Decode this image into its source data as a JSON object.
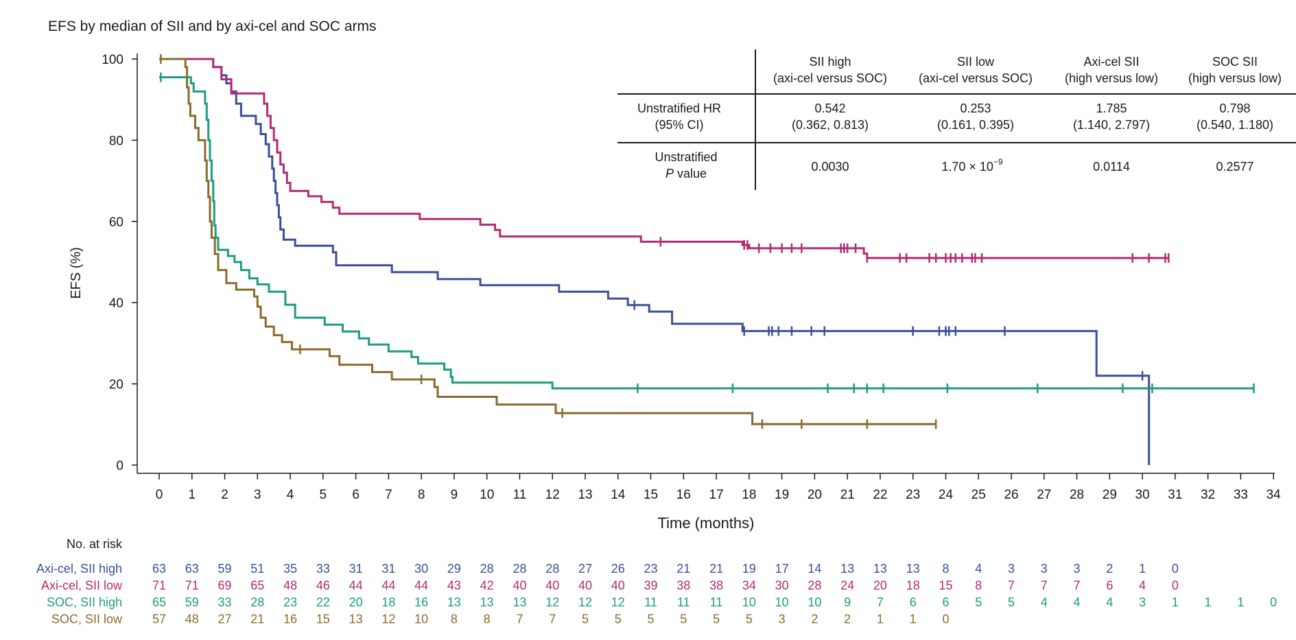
{
  "chart_data": {
    "type": "line",
    "subtype": "kaplan-meier step curves",
    "title": "EFS by median of SII and by axi-cel and SOC arms",
    "xlabel": "Time (months)",
    "ylabel": "EFS (%)",
    "xlim": [
      0,
      34
    ],
    "ylim": [
      0,
      100
    ],
    "xticks": [
      0,
      1,
      2,
      3,
      4,
      5,
      6,
      7,
      8,
      9,
      10,
      11,
      12,
      13,
      14,
      15,
      16,
      17,
      18,
      19,
      20,
      21,
      22,
      23,
      24,
      25,
      26,
      27,
      28,
      29,
      30,
      31,
      32,
      33,
      34
    ],
    "yticks": [
      0,
      20,
      40,
      60,
      80,
      100
    ],
    "series": [
      {
        "name": "Axi-cel, SII high",
        "color": "#3a4f96",
        "steps": [
          [
            0,
            100
          ],
          [
            1.65,
            98
          ],
          [
            1.9,
            96
          ],
          [
            2.05,
            94
          ],
          [
            2.2,
            92
          ],
          [
            2.35,
            89
          ],
          [
            2.5,
            86
          ],
          [
            2.95,
            84
          ],
          [
            3.1,
            81.5
          ],
          [
            3.25,
            79
          ],
          [
            3.35,
            76
          ],
          [
            3.45,
            73
          ],
          [
            3.5,
            70
          ],
          [
            3.55,
            67
          ],
          [
            3.6,
            64
          ],
          [
            3.65,
            61
          ],
          [
            3.7,
            58
          ],
          [
            3.8,
            55.5
          ],
          [
            4.15,
            54
          ],
          [
            5.3,
            52.4
          ],
          [
            5.4,
            49.2
          ],
          [
            7.1,
            47.5
          ],
          [
            8.5,
            45.8
          ],
          [
            9.8,
            44.3
          ],
          [
            12.2,
            42.7
          ],
          [
            13.7,
            41
          ],
          [
            14.3,
            39.4
          ],
          [
            14.95,
            37.8
          ],
          [
            15.65,
            34.8
          ],
          [
            17.8,
            33
          ],
          [
            28.6,
            22
          ],
          [
            30.2,
            0
          ]
        ],
        "end": 30.2,
        "censors": [
          14.5,
          17.85,
          18.6,
          18.7,
          18.9,
          19.3,
          19.9,
          20.3,
          23,
          23.8,
          24,
          24.1,
          24.3,
          25.8,
          30
        ]
      },
      {
        "name": "Axi-cel, SII low",
        "color": "#b52a72",
        "steps": [
          [
            0,
            100
          ],
          [
            1.65,
            98
          ],
          [
            1.9,
            95
          ],
          [
            2.2,
            91.5
          ],
          [
            3.2,
            89
          ],
          [
            3.3,
            86
          ],
          [
            3.4,
            83
          ],
          [
            3.5,
            80
          ],
          [
            3.6,
            77
          ],
          [
            3.7,
            74
          ],
          [
            3.8,
            72
          ],
          [
            3.9,
            69.5
          ],
          [
            4.0,
            67.5
          ],
          [
            4.55,
            66.2
          ],
          [
            4.95,
            64.8
          ],
          [
            5.3,
            63.4
          ],
          [
            5.5,
            61.9
          ],
          [
            7.95,
            60.6
          ],
          [
            9.8,
            59.2
          ],
          [
            10.25,
            57.9
          ],
          [
            10.4,
            56.3
          ],
          [
            14.7,
            55
          ],
          [
            17.8,
            54.2
          ],
          [
            18,
            53.4
          ],
          [
            21.5,
            52.1
          ],
          [
            21.6,
            51
          ]
        ],
        "end": 30.8,
        "censors": [
          15.3,
          17.85,
          17.95,
          18.3,
          18.65,
          19,
          19.3,
          19.6,
          20.8,
          20.9,
          21,
          21.25,
          21.6,
          22.6,
          22.8,
          23.5,
          23.7,
          24,
          24.15,
          24.3,
          24.5,
          24.8,
          24.9,
          25.1,
          29.7,
          30.2,
          30.7,
          30.8
        ]
      },
      {
        "name": "SOC, SII high",
        "color": "#1d9b80",
        "steps": [
          [
            0,
            95.5
          ],
          [
            0.97,
            94
          ],
          [
            1.05,
            92
          ],
          [
            1.4,
            89
          ],
          [
            1.45,
            85
          ],
          [
            1.5,
            80
          ],
          [
            1.55,
            75
          ],
          [
            1.6,
            70
          ],
          [
            1.65,
            65
          ],
          [
            1.68,
            59
          ],
          [
            1.72,
            56
          ],
          [
            1.8,
            53
          ],
          [
            2.1,
            51.5
          ],
          [
            2.3,
            50
          ],
          [
            2.5,
            48
          ],
          [
            2.75,
            46
          ],
          [
            3.0,
            44.5
          ],
          [
            3.35,
            42.7
          ],
          [
            3.85,
            39.5
          ],
          [
            4.15,
            36.3
          ],
          [
            5.05,
            34.6
          ],
          [
            5.6,
            32.9
          ],
          [
            6.1,
            31.2
          ],
          [
            6.4,
            29.7
          ],
          [
            7.0,
            28
          ],
          [
            7.7,
            26.6
          ],
          [
            7.9,
            25
          ],
          [
            8.7,
            23.5
          ],
          [
            8.9,
            21.7
          ],
          [
            8.95,
            20.3
          ],
          [
            12.0,
            18.9
          ]
        ],
        "end": 33.4,
        "censors": [
          0.05,
          14.6,
          17.5,
          20.4,
          21.2,
          21.6,
          22.1,
          24.05,
          26.8,
          29.4,
          30.3,
          33.4
        ]
      },
      {
        "name": "SOC, SII low",
        "color": "#8a6a2c",
        "steps": [
          [
            0,
            100
          ],
          [
            0.8,
            98
          ],
          [
            0.85,
            93
          ],
          [
            0.9,
            89
          ],
          [
            0.95,
            86
          ],
          [
            1.1,
            83
          ],
          [
            1.2,
            80
          ],
          [
            1.4,
            75
          ],
          [
            1.45,
            70
          ],
          [
            1.5,
            66
          ],
          [
            1.55,
            60
          ],
          [
            1.6,
            56
          ],
          [
            1.7,
            52
          ],
          [
            1.8,
            48
          ],
          [
            2.05,
            44.8
          ],
          [
            2.35,
            43.2
          ],
          [
            2.9,
            41.5
          ],
          [
            3.0,
            39
          ],
          [
            3.1,
            36.3
          ],
          [
            3.25,
            34.1
          ],
          [
            3.5,
            32
          ],
          [
            3.75,
            30.3
          ],
          [
            4.05,
            28.5
          ],
          [
            5.2,
            26.8
          ],
          [
            5.5,
            24.7
          ],
          [
            6.5,
            22.9
          ],
          [
            7.1,
            21.1
          ],
          [
            8.4,
            19.2
          ],
          [
            8.5,
            16.8
          ],
          [
            10.3,
            14.9
          ],
          [
            12.1,
            12.8
          ],
          [
            18.1,
            10.1
          ]
        ],
        "end": 23.7,
        "censors": [
          0.05,
          4.3,
          8.0,
          12.3,
          18.4,
          19.6,
          21.6,
          23.7
        ]
      }
    ],
    "hr_table": {
      "columns": [
        {
          "line1": "SII high",
          "line2": "(axi-cel versus SOC)"
        },
        {
          "line1": "SII low",
          "line2": "(axi-cel versus SOC)"
        },
        {
          "line1": "Axi-cel SII",
          "line2": "(high versus low)"
        },
        {
          "line1": "SOC SII",
          "line2": "(high versus low)"
        }
      ],
      "rows": [
        {
          "label1": "Unstratified HR",
          "label2": "(95% CI)",
          "cells": [
            {
              "line1": "0.542",
              "line2": "(0.362, 0.813)"
            },
            {
              "line1": "0.253",
              "line2": "(0.161, 0.395)"
            },
            {
              "line1": "1.785",
              "line2": "(1.140, 2.797)"
            },
            {
              "line1": "0.798",
              "line2": "(0.540, 1.180)"
            }
          ]
        },
        {
          "label1": "Unstratified",
          "label2_italic": "P",
          "label2_rest": " value",
          "cells": [
            {
              "line1": "0.0030"
            },
            {
              "base": "1.70 × 10",
              "sup": "−9"
            },
            {
              "line1": "0.0114"
            },
            {
              "line1": "0.2577"
            }
          ]
        }
      ]
    },
    "risk_table": {
      "title": "No. at risk",
      "rows": [
        {
          "name": "Axi-cel, SII high",
          "color": "#3a4f96",
          "values": [
            "63",
            "63",
            "59",
            "51",
            "35",
            "33",
            "31",
            "31",
            "30",
            "29",
            "28",
            "28",
            "28",
            "27",
            "26",
            "23",
            "21",
            "21",
            "19",
            "17",
            "14",
            "13",
            "13",
            "13",
            "8",
            "4",
            "3",
            "3",
            "3",
            "2",
            "1",
            "0"
          ]
        },
        {
          "name": "Axi-cel, SII low",
          "color": "#b52a72",
          "values": [
            "71",
            "71",
            "69",
            "65",
            "48",
            "46",
            "44",
            "44",
            "44",
            "43",
            "42",
            "40",
            "40",
            "40",
            "40",
            "39",
            "38",
            "38",
            "34",
            "30",
            "28",
            "24",
            "20",
            "18",
            "15",
            "8",
            "7",
            "7",
            "7",
            "6",
            "4",
            "0"
          ]
        },
        {
          "name": "SOC, SII high",
          "color": "#1d9b80",
          "values": [
            "65",
            "59",
            "33",
            "28",
            "23",
            "22",
            "20",
            "18",
            "16",
            "13",
            "13",
            "13",
            "12",
            "12",
            "12",
            "11",
            "11",
            "11",
            "10",
            "10",
            "10",
            "9",
            "7",
            "6",
            "6",
            "5",
            "5",
            "4",
            "4",
            "4",
            "3",
            "1",
            "1",
            "1",
            "0"
          ]
        },
        {
          "name": "SOC, SII low",
          "color": "#8a6a2c",
          "values": [
            "57",
            "48",
            "27",
            "21",
            "16",
            "15",
            "13",
            "12",
            "10",
            "8",
            "8",
            "7",
            "7",
            "5",
            "5",
            "5",
            "5",
            "5",
            "5",
            "3",
            "2",
            "2",
            "1",
            "1",
            "0"
          ]
        }
      ]
    }
  }
}
